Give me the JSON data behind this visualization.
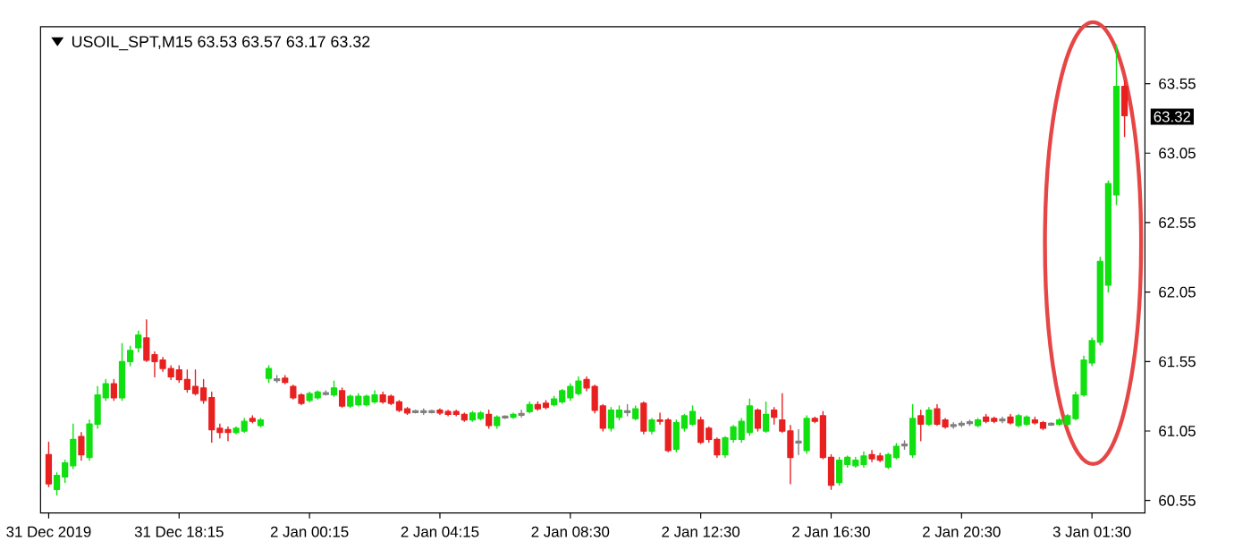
{
  "chart_data": {
    "type": "candlestick",
    "title": "USOIL_SPT,M15 63.53 63.57 63.17 63.32",
    "categories": [
      "31 Dec 2019",
      null,
      null,
      null,
      null,
      null,
      null,
      null,
      null,
      null,
      null,
      null,
      null,
      null,
      null,
      null,
      "31 Dec 18:15",
      null,
      null,
      null,
      null,
      null,
      null,
      null,
      null,
      null,
      null,
      null,
      null,
      null,
      null,
      null,
      "2 Jan 00:15",
      null,
      null,
      null,
      null,
      null,
      null,
      null,
      null,
      null,
      null,
      null,
      null,
      null,
      null,
      null,
      "2 Jan 04:15",
      null,
      null,
      null,
      null,
      null,
      null,
      null,
      null,
      null,
      null,
      null,
      null,
      null,
      null,
      null,
      "2 Jan 08:30",
      null,
      null,
      null,
      null,
      null,
      null,
      null,
      null,
      null,
      null,
      null,
      null,
      null,
      null,
      null,
      "2 Jan 12:30",
      null,
      null,
      null,
      null,
      null,
      null,
      null,
      null,
      null,
      null,
      null,
      null,
      null,
      null,
      null,
      "2 Jan 16:30",
      null,
      null,
      null,
      null,
      null,
      null,
      null,
      null,
      null,
      null,
      null,
      null,
      null,
      null,
      null,
      "2 Jan 20:30",
      null,
      null,
      null,
      null,
      null,
      null,
      null,
      null,
      null,
      null,
      null,
      null,
      null,
      null,
      null,
      "3 Jan 01:30",
      null,
      null,
      null,
      null
    ],
    "ohlc": [
      [
        60.88,
        60.97,
        60.65,
        60.67
      ],
      [
        60.63,
        60.75,
        60.59,
        60.73
      ],
      [
        60.72,
        60.84,
        60.68,
        60.82
      ],
      [
        60.8,
        61.1,
        60.78,
        60.99
      ],
      [
        61.01,
        61.04,
        60.84,
        60.88
      ],
      [
        60.86,
        61.13,
        60.84,
        61.1
      ],
      [
        61.1,
        61.37,
        61.07,
        61.31
      ],
      [
        61.29,
        61.42,
        61.27,
        61.39
      ],
      [
        61.39,
        61.42,
        61.27,
        61.29
      ],
      [
        61.29,
        61.68,
        61.27,
        61.55
      ],
      [
        61.55,
        61.66,
        61.52,
        61.63
      ],
      [
        61.65,
        61.77,
        61.62,
        61.74
      ],
      [
        61.72,
        61.85,
        61.55,
        61.56
      ],
      [
        61.6,
        61.62,
        61.44,
        61.55
      ],
      [
        61.56,
        61.58,
        61.48,
        61.5
      ],
      [
        61.5,
        61.52,
        61.42,
        61.44
      ],
      [
        61.49,
        61.52,
        61.4,
        61.42
      ],
      [
        61.42,
        61.49,
        61.33,
        61.35
      ],
      [
        61.37,
        61.49,
        61.31,
        61.32
      ],
      [
        61.36,
        61.42,
        61.25,
        61.27
      ],
      [
        61.29,
        61.33,
        60.97,
        61.06
      ],
      [
        61.07,
        61.1,
        61.0,
        61.04
      ],
      [
        61.06,
        61.08,
        60.98,
        61.04
      ],
      [
        61.04,
        61.08,
        61.03,
        61.07
      ],
      [
        61.05,
        61.14,
        61.04,
        61.12
      ],
      [
        61.14,
        61.16,
        61.11,
        61.12
      ],
      [
        61.09,
        61.14,
        61.08,
        61.13
      ],
      [
        61.43,
        61.52,
        61.4,
        61.5
      ],
      [
        61.42,
        61.45,
        61.4,
        61.42
      ],
      [
        61.43,
        61.45,
        61.39,
        61.4
      ],
      [
        61.37,
        61.38,
        61.28,
        61.29
      ],
      [
        61.31,
        61.32,
        61.24,
        61.25
      ],
      [
        61.27,
        61.33,
        61.26,
        61.32
      ],
      [
        61.29,
        61.34,
        61.28,
        61.33
      ],
      [
        61.32,
        61.34,
        61.31,
        61.32
      ],
      [
        61.31,
        61.41,
        61.3,
        61.36
      ],
      [
        61.34,
        61.36,
        61.22,
        61.23
      ],
      [
        61.23,
        61.31,
        61.22,
        61.3
      ],
      [
        61.24,
        61.32,
        61.23,
        61.3
      ],
      [
        61.24,
        61.31,
        61.23,
        61.3
      ],
      [
        61.26,
        61.34,
        61.25,
        61.31
      ],
      [
        61.31,
        61.33,
        61.25,
        61.26
      ],
      [
        61.3,
        61.31,
        61.24,
        61.25
      ],
      [
        61.26,
        61.27,
        61.19,
        61.2
      ],
      [
        61.21,
        61.22,
        61.17,
        61.18
      ],
      [
        61.19,
        61.2,
        61.18,
        61.19
      ],
      [
        61.19,
        61.21,
        61.17,
        61.19
      ],
      [
        61.19,
        61.2,
        61.18,
        61.19
      ],
      [
        61.2,
        61.21,
        61.17,
        61.18
      ],
      [
        61.19,
        61.2,
        61.16,
        61.17
      ],
      [
        61.19,
        61.2,
        61.16,
        61.17
      ],
      [
        61.17,
        61.18,
        61.12,
        61.13
      ],
      [
        61.13,
        61.19,
        61.12,
        61.18
      ],
      [
        61.14,
        61.19,
        61.13,
        61.18
      ],
      [
        61.17,
        61.2,
        61.07,
        61.09
      ],
      [
        61.09,
        61.16,
        61.07,
        61.15
      ],
      [
        61.15,
        61.16,
        61.14,
        61.15
      ],
      [
        61.15,
        61.18,
        61.14,
        61.17
      ],
      [
        61.17,
        61.2,
        61.15,
        61.17
      ],
      [
        61.19,
        61.26,
        61.18,
        61.24
      ],
      [
        61.24,
        61.26,
        61.2,
        61.21
      ],
      [
        61.25,
        61.27,
        61.21,
        61.22
      ],
      [
        61.24,
        61.3,
        61.23,
        61.28
      ],
      [
        61.26,
        61.35,
        61.25,
        61.34
      ],
      [
        61.29,
        61.39,
        61.27,
        61.37
      ],
      [
        61.32,
        61.44,
        61.31,
        61.41
      ],
      [
        61.42,
        61.44,
        61.34,
        61.36
      ],
      [
        61.37,
        61.38,
        61.18,
        61.2
      ],
      [
        61.23,
        61.24,
        61.05,
        61.07
      ],
      [
        61.07,
        61.22,
        61.05,
        61.2
      ],
      [
        61.15,
        61.23,
        61.13,
        61.2
      ],
      [
        61.19,
        61.24,
        61.16,
        61.19
      ],
      [
        61.14,
        61.23,
        61.13,
        61.21
      ],
      [
        61.25,
        61.26,
        61.03,
        61.05
      ],
      [
        61.05,
        61.14,
        61.03,
        61.13
      ],
      [
        61.13,
        61.18,
        61.1,
        61.12
      ],
      [
        61.13,
        61.14,
        60.9,
        60.91
      ],
      [
        60.92,
        61.13,
        60.9,
        61.11
      ],
      [
        61.07,
        61.17,
        61.05,
        61.16
      ],
      [
        61.1,
        61.23,
        61.09,
        61.19
      ],
      [
        61.13,
        61.15,
        60.96,
        60.97
      ],
      [
        61.07,
        61.08,
        60.97,
        60.99
      ],
      [
        60.99,
        61.0,
        60.86,
        60.88
      ],
      [
        60.88,
        61.01,
        60.86,
        61.0
      ],
      [
        60.99,
        61.09,
        60.97,
        61.08
      ],
      [
        60.99,
        61.14,
        60.97,
        61.12
      ],
      [
        61.04,
        61.28,
        61.02,
        61.23
      ],
      [
        61.2,
        61.21,
        61.05,
        61.07
      ],
      [
        61.05,
        61.26,
        61.04,
        61.17
      ],
      [
        61.2,
        61.22,
        61.1,
        61.15
      ],
      [
        61.13,
        61.32,
        61.04,
        61.05
      ],
      [
        61.05,
        61.09,
        60.67,
        60.86
      ],
      [
        60.97,
        61.06,
        60.88,
        60.97
      ],
      [
        60.91,
        61.16,
        60.89,
        61.14
      ],
      [
        61.14,
        61.15,
        61.11,
        61.12
      ],
      [
        61.16,
        61.19,
        60.85,
        60.86
      ],
      [
        60.86,
        60.88,
        60.63,
        60.66
      ],
      [
        60.68,
        60.86,
        60.66,
        60.84
      ],
      [
        60.81,
        60.87,
        60.79,
        60.86
      ],
      [
        60.8,
        60.86,
        60.79,
        60.84
      ],
      [
        60.81,
        60.9,
        60.79,
        60.87
      ],
      [
        60.88,
        60.91,
        60.83,
        60.85
      ],
      [
        60.87,
        60.89,
        60.83,
        60.84
      ],
      [
        60.79,
        60.89,
        60.78,
        60.88
      ],
      [
        60.86,
        60.96,
        60.85,
        60.94
      ],
      [
        60.95,
        60.98,
        60.92,
        60.95
      ],
      [
        60.88,
        61.24,
        60.86,
        61.14
      ],
      [
        61.16,
        61.2,
        60.98,
        61.1
      ],
      [
        61.1,
        61.22,
        61.09,
        61.2
      ],
      [
        61.21,
        61.24,
        61.09,
        61.1
      ],
      [
        61.13,
        61.14,
        61.07,
        61.08
      ],
      [
        61.09,
        61.11,
        61.07,
        61.09
      ],
      [
        61.1,
        61.12,
        61.08,
        61.1
      ],
      [
        61.11,
        61.13,
        61.09,
        61.11
      ],
      [
        61.09,
        61.14,
        61.08,
        61.13
      ],
      [
        61.15,
        61.17,
        61.11,
        61.12
      ],
      [
        61.14,
        61.15,
        61.11,
        61.12
      ],
      [
        61.13,
        61.15,
        61.11,
        61.13
      ],
      [
        61.15,
        61.17,
        61.1,
        61.11
      ],
      [
        61.09,
        61.17,
        61.08,
        61.16
      ],
      [
        61.1,
        61.16,
        61.09,
        61.15
      ],
      [
        61.13,
        61.15,
        61.1,
        61.11
      ],
      [
        61.11,
        61.12,
        61.06,
        61.07
      ],
      [
        61.1,
        61.11,
        61.09,
        61.1
      ],
      [
        61.1,
        61.14,
        61.09,
        61.13
      ],
      [
        61.1,
        61.17,
        61.09,
        61.16
      ],
      [
        61.14,
        61.33,
        61.13,
        61.31
      ],
      [
        61.31,
        61.59,
        61.3,
        61.56
      ],
      [
        61.54,
        61.72,
        61.52,
        61.7
      ],
      [
        61.69,
        62.3,
        61.67,
        62.27
      ],
      [
        62.1,
        62.85,
        62.05,
        62.83
      ],
      [
        62.75,
        63.83,
        62.68,
        63.53
      ],
      [
        63.53,
        63.57,
        63.17,
        63.32
      ]
    ],
    "colors": [
      "#e82020",
      "#10e010",
      "#10e010",
      "#10e010",
      "#e82020",
      "#10e010",
      "#10e010",
      "#10e010",
      "#e82020",
      "#10e010",
      "#10e010",
      "#10e010",
      "#e82020",
      "#e82020",
      "#e82020",
      "#e82020",
      "#e82020",
      "#e82020",
      "#e82020",
      "#e82020",
      "#e82020",
      "#e82020",
      "#e82020",
      "#10e010",
      "#10e010",
      "#e82020",
      "#10e010",
      "#10e010",
      "#808080",
      "#e82020",
      "#e82020",
      "#e82020",
      "#10e010",
      "#10e010",
      "#808080",
      "#10e010",
      "#e82020",
      "#10e010",
      "#10e010",
      "#10e010",
      "#10e010",
      "#e82020",
      "#e82020",
      "#e82020",
      "#e82020",
      "#808080",
      "#808080",
      "#808080",
      "#e82020",
      "#e82020",
      "#e82020",
      "#e82020",
      "#10e010",
      "#10e010",
      "#e82020",
      "#10e010",
      "#808080",
      "#10e010",
      "#808080",
      "#10e010",
      "#e82020",
      "#e82020",
      "#10e010",
      "#10e010",
      "#10e010",
      "#10e010",
      "#e82020",
      "#e82020",
      "#e82020",
      "#10e010",
      "#10e010",
      "#808080",
      "#10e010",
      "#e82020",
      "#10e010",
      "#e82020",
      "#e82020",
      "#10e010",
      "#10e010",
      "#10e010",
      "#e82020",
      "#e82020",
      "#e82020",
      "#10e010",
      "#10e010",
      "#10e010",
      "#10e010",
      "#e82020",
      "#10e010",
      "#e82020",
      "#e82020",
      "#e82020",
      "#808080",
      "#10e010",
      "#e82020",
      "#e82020",
      "#e82020",
      "#10e010",
      "#10e010",
      "#10e010",
      "#10e010",
      "#e82020",
      "#e82020",
      "#10e010",
      "#10e010",
      "#808080",
      "#10e010",
      "#e82020",
      "#10e010",
      "#e82020",
      "#e82020",
      "#808080",
      "#808080",
      "#808080",
      "#10e010",
      "#e82020",
      "#e82020",
      "#808080",
      "#e82020",
      "#10e010",
      "#10e010",
      "#e82020",
      "#e82020",
      "#808080",
      "#10e010",
      "#10e010",
      "#10e010",
      "#10e010",
      "#10e010",
      "#10e010",
      "#10e010",
      "#10e010",
      "#e82020"
    ],
    "ylim": [
      60.46,
      63.96
    ],
    "yticks": [
      60.55,
      61.05,
      61.55,
      62.05,
      62.55,
      63.05,
      63.55
    ],
    "annotations": [
      "63.32"
    ]
  }
}
